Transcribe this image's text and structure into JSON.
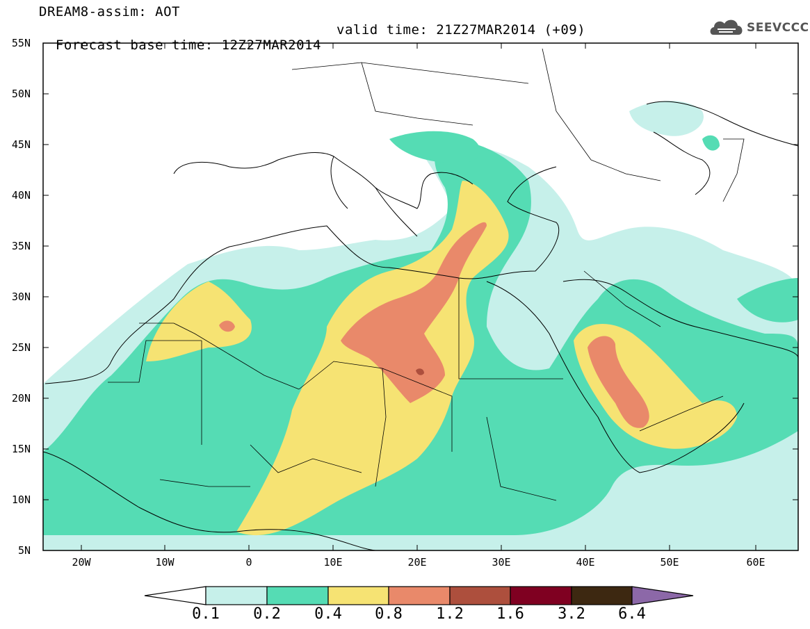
{
  "header": {
    "title": "DREAM8-assim: AOT",
    "base_time": "Forecast base time: 12Z27MAR2014",
    "valid_time": "valid time: 21Z27MAR2014 (+09)",
    "logo_text": "SEEVCCC"
  },
  "map": {
    "lat_labels": [
      "55N",
      "50N",
      "45N",
      "40N",
      "35N",
      "30N",
      "25N",
      "20N",
      "15N",
      "10N",
      "5N"
    ],
    "lon_labels": [
      "20W",
      "10W",
      "0",
      "10E",
      "20E",
      "30E",
      "40E",
      "50E",
      "60E"
    ]
  },
  "colorbar": {
    "labels": [
      "0.1",
      "0.2",
      "0.4",
      "0.8",
      "1.2",
      "1.6",
      "3.2",
      "6.4"
    ],
    "colors": [
      "#c6f0ea",
      "#55dcb4",
      "#f6e373",
      "#e9896a",
      "#ad4f3d",
      "#7f0021",
      "#3d2811",
      "#8c68a8"
    ]
  }
}
